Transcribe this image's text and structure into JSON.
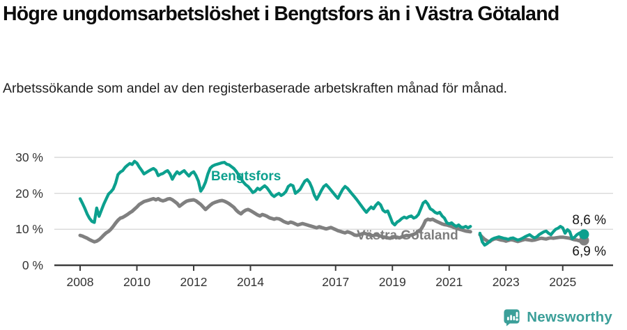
{
  "header": {
    "title": "Högre ungdomsarbetslöshet i Bengtsfors än i Västra Götaland",
    "subtitle": "Arbetssökande som andel av den registerbaserade arbetskraften månad för månad."
  },
  "chart_data": {
    "type": "line",
    "title": "Högre ungdomsarbetslöshet i Bengtsfors än i Västra Götaland",
    "subtitle": "Arbetssökande som andel av den registerbaserade arbetskraften månad för månad.",
    "unit": "%",
    "x_start_year": 2008,
    "x_step_months": 1,
    "x_range_note": "monthly data Jan 2008 - Oct 2025, gap Nov 2021 - Jan 2022",
    "ylim": [
      0,
      32
    ],
    "yticks": [
      0,
      10,
      20,
      30
    ],
    "ytick_labels": [
      "0 %",
      "10 %",
      "20 %",
      "30 %"
    ],
    "xticks": [
      2008,
      2010,
      2012,
      2014,
      2017,
      2019,
      2021,
      2023,
      2025
    ],
    "grid": "horizontal",
    "legend_position": "inline-labels",
    "colors": {
      "axis_text": "#333333",
      "gridline": "#d9d9d9",
      "axis_line": "#3d3d3d"
    },
    "series": [
      {
        "name": "Bengtsfors",
        "color": "#0ca08e",
        "label_color": "#0ca08e",
        "end_label": "8,6 %",
        "end_value": 8.6,
        "values": [
          18.5,
          17.2,
          15.8,
          14.2,
          13.0,
          12.2,
          11.9,
          15.9,
          13.6,
          15.3,
          17.0,
          18.4,
          19.8,
          20.4,
          21.2,
          22.8,
          25.2,
          25.9,
          26.3,
          27.2,
          27.8,
          28.3,
          28.0,
          28.9,
          28.4,
          27.3,
          26.4,
          25.4,
          25.8,
          26.2,
          26.6,
          26.9,
          26.4,
          24.9,
          25.3,
          25.5,
          26.0,
          26.3,
          25.4,
          23.9,
          25.1,
          26.0,
          25.4,
          25.9,
          26.3,
          25.5,
          24.8,
          25.6,
          26.0,
          24.9,
          23.4,
          20.6,
          21.6,
          23.1,
          25.4,
          27.0,
          27.6,
          27.9,
          28.1,
          28.3,
          28.5,
          28.6,
          28.1,
          27.9,
          27.4,
          26.9,
          26.1,
          25.1,
          24.1,
          23.1,
          22.4,
          21.9,
          21.1,
          20.2,
          20.6,
          21.4,
          21.0,
          21.6,
          22.1,
          21.5,
          20.6,
          19.6,
          19.1,
          19.6,
          20.0,
          19.4,
          19.8,
          20.5,
          21.9,
          22.4,
          22.1,
          20.0,
          20.5,
          21.1,
          22.3,
          23.4,
          23.8,
          23.0,
          21.5,
          19.5,
          18.3,
          19.5,
          20.8,
          21.9,
          22.4,
          21.7,
          20.9,
          20.1,
          19.3,
          18.6,
          19.9,
          21.1,
          21.9,
          21.4,
          20.6,
          19.8,
          19.0,
          18.2,
          17.3,
          16.4,
          15.5,
          14.7,
          15.5,
          16.2,
          15.7,
          16.7,
          17.4,
          16.8,
          15.3,
          14.8,
          15.1,
          13.5,
          11.8,
          11.2,
          12.0,
          12.4,
          13.0,
          13.4,
          13.1,
          13.5,
          13.7,
          13.1,
          13.4,
          14.1,
          15.7,
          17.3,
          17.8,
          17.0,
          15.7,
          15.3,
          14.7,
          14.4,
          14.7,
          13.7,
          13.1,
          11.8,
          11.5,
          11.8,
          11.2,
          10.8,
          11.2,
          10.6,
          10.5,
          10.8,
          10.4,
          10.8,
          null,
          null,
          null,
          8.9,
          6.5,
          5.6,
          6.0,
          6.6,
          7.2,
          7.5,
          7.7,
          7.9,
          7.7,
          7.5,
          7.4,
          7.2,
          7.5,
          7.6,
          7.3,
          7.0,
          7.2,
          7.5,
          7.9,
          8.2,
          8.5,
          8.0,
          7.6,
          7.9,
          8.5,
          8.9,
          9.3,
          9.5,
          8.9,
          8.5,
          9.3,
          10.0,
          10.3,
          10.8,
          10.4,
          8.9,
          9.9,
          9.3,
          7.4,
          7.8,
          8.5,
          8.9,
          9.2,
          8.6
        ]
      },
      {
        "name": "Västra Götaland",
        "color": "#808080",
        "label_color": "#7d7d7d",
        "end_label": "6,9 %",
        "end_value": 6.9,
        "values": [
          8.3,
          8.1,
          7.8,
          7.5,
          7.1,
          6.8,
          6.5,
          6.7,
          7.1,
          7.7,
          8.4,
          9.0,
          9.4,
          10.0,
          10.8,
          11.7,
          12.5,
          13.1,
          13.3,
          13.7,
          14.1,
          14.6,
          15.0,
          15.6,
          16.2,
          16.9,
          17.3,
          17.7,
          17.9,
          18.1,
          18.3,
          18.5,
          18.2,
          18.5,
          18.1,
          17.9,
          18.1,
          18.4,
          18.5,
          18.2,
          17.7,
          17.2,
          16.4,
          16.9,
          17.4,
          17.8,
          18.0,
          18.1,
          18.2,
          17.9,
          17.4,
          16.9,
          16.2,
          15.5,
          16.1,
          16.7,
          17.2,
          17.5,
          17.7,
          17.9,
          18.0,
          17.8,
          17.5,
          17.1,
          16.6,
          16.1,
          15.3,
          14.7,
          14.3,
          14.9,
          15.3,
          15.5,
          15.2,
          14.8,
          14.4,
          14.0,
          13.7,
          14.1,
          13.9,
          13.6,
          13.2,
          13.0,
          12.8,
          13.0,
          12.9,
          12.6,
          12.2,
          11.9,
          11.7,
          12.0,
          11.8,
          11.5,
          11.2,
          11.4,
          11.6,
          11.4,
          11.2,
          11.0,
          10.8,
          10.6,
          10.4,
          10.7,
          10.5,
          10.3,
          10.1,
          10.3,
          10.5,
          10.2,
          9.9,
          9.6,
          9.4,
          9.2,
          9.0,
          9.3,
          9.1,
          8.8,
          8.4,
          8.3,
          8.5,
          8.7,
          8.9,
          8.7,
          8.5,
          8.3,
          8.2,
          8.5,
          8.3,
          8.1,
          7.9,
          7.8,
          7.6,
          7.5,
          7.7,
          7.9,
          7.8,
          7.6,
          7.9,
          8.1,
          8.3,
          8.2,
          8.4,
          8.6,
          8.9,
          9.5,
          9.9,
          11.0,
          12.4,
          12.8,
          12.6,
          12.8,
          12.4,
          12.1,
          11.8,
          11.5,
          11.3,
          11.2,
          11.0,
          10.8,
          10.5,
          10.3,
          10.1,
          9.9,
          9.7,
          9.5,
          9.4,
          9.3,
          null,
          null,
          null,
          8.5,
          7.8,
          7.2,
          6.8,
          6.5,
          7.0,
          7.3,
          7.4,
          7.2,
          7.0,
          6.9,
          6.7,
          6.9,
          7.1,
          7.0,
          6.8,
          6.6,
          6.8,
          7.0,
          7.2,
          7.1,
          7.0,
          6.9,
          7.0,
          7.2,
          7.4,
          7.5,
          7.4,
          7.3,
          7.5,
          7.6,
          7.5,
          7.6,
          7.7,
          7.8,
          7.8,
          7.7,
          7.6,
          7.5,
          7.3,
          7.1,
          7.0,
          6.8,
          6.7,
          6.9
        ]
      }
    ]
  },
  "branding": {
    "name": "Newsworthy",
    "color": "#3b9f99",
    "logo_icon": "bar-chart-speech-bubble-icon"
  }
}
